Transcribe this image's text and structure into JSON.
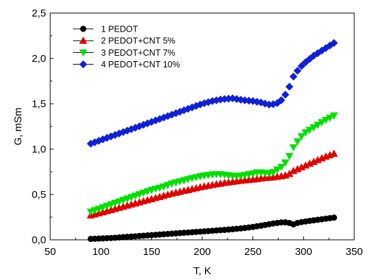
{
  "chart_data": {
    "type": "scatter",
    "xlabel": "T, K",
    "ylabel": "G, mSm",
    "xlim": [
      50,
      350
    ],
    "ylim": [
      0,
      2.5
    ],
    "xticks": [
      50,
      100,
      150,
      200,
      250,
      300,
      350
    ],
    "yticks": [
      0,
      0.5,
      1,
      1.5,
      2,
      2.5
    ],
    "xtick_labels": [
      "50",
      "100",
      "150",
      "200",
      "250",
      "300",
      "350"
    ],
    "ytick_labels": [
      "0,0",
      "0,5",
      "1,0",
      "1,5",
      "2,0",
      "2,5"
    ],
    "legend_position": "top-left",
    "grid": false,
    "series": [
      {
        "name": "1  PEDOT",
        "color": "#000000",
        "marker": "circle",
        "x": [
          90,
          100,
          110,
          120,
          130,
          140,
          150,
          160,
          170,
          180,
          190,
          200,
          210,
          220,
          230,
          240,
          250,
          260,
          270,
          280,
          285,
          290,
          295,
          300,
          310,
          320,
          330
        ],
        "y": [
          0.01,
          0.015,
          0.02,
          0.028,
          0.036,
          0.044,
          0.052,
          0.06,
          0.068,
          0.076,
          0.084,
          0.092,
          0.1,
          0.108,
          0.117,
          0.128,
          0.142,
          0.16,
          0.18,
          0.195,
          0.19,
          0.17,
          0.19,
          0.2,
          0.215,
          0.23,
          0.245
        ]
      },
      {
        "name": "2  PEDOT+CNT 5%",
        "color": "#e00000",
        "marker": "triangle-up",
        "x": [
          90,
          100,
          110,
          120,
          130,
          140,
          150,
          160,
          170,
          180,
          190,
          200,
          210,
          220,
          230,
          240,
          250,
          260,
          270,
          280,
          285,
          290,
          300,
          310,
          320,
          330
        ],
        "y": [
          0.27,
          0.3,
          0.33,
          0.36,
          0.39,
          0.42,
          0.45,
          0.48,
          0.51,
          0.535,
          0.56,
          0.585,
          0.605,
          0.625,
          0.64,
          0.655,
          0.665,
          0.68,
          0.69,
          0.705,
          0.72,
          0.76,
          0.81,
          0.86,
          0.91,
          0.95
        ]
      },
      {
        "name": "3  PEDOT+CNT 7%",
        "color": "#00e000",
        "marker": "triangle-down",
        "x": [
          90,
          100,
          110,
          120,
          130,
          140,
          150,
          160,
          170,
          180,
          190,
          200,
          210,
          215,
          220,
          230,
          235,
          240,
          250,
          255,
          260,
          265,
          270,
          275,
          280,
          285,
          290,
          295,
          300,
          310,
          320,
          330
        ],
        "y": [
          0.31,
          0.35,
          0.39,
          0.43,
          0.47,
          0.51,
          0.55,
          0.58,
          0.62,
          0.65,
          0.68,
          0.705,
          0.72,
          0.725,
          0.72,
          0.705,
          0.7,
          0.71,
          0.73,
          0.745,
          0.74,
          0.73,
          0.745,
          0.78,
          0.82,
          0.9,
          1.02,
          1.1,
          1.17,
          1.24,
          1.31,
          1.37
        ]
      },
      {
        "name": "4  PEDOT+CNT 10%",
        "color": "#1020d8",
        "marker": "diamond",
        "x": [
          90,
          100,
          110,
          120,
          130,
          140,
          150,
          160,
          170,
          180,
          190,
          200,
          210,
          220,
          225,
          230,
          235,
          240,
          250,
          260,
          265,
          270,
          275,
          280,
          285,
          290,
          295,
          300,
          310,
          320,
          330
        ],
        "y": [
          1.06,
          1.1,
          1.14,
          1.18,
          1.22,
          1.26,
          1.3,
          1.34,
          1.38,
          1.42,
          1.46,
          1.5,
          1.53,
          1.55,
          1.555,
          1.56,
          1.55,
          1.54,
          1.53,
          1.51,
          1.49,
          1.495,
          1.51,
          1.56,
          1.66,
          1.8,
          1.88,
          1.94,
          2.03,
          2.1,
          2.17
        ]
      }
    ]
  }
}
